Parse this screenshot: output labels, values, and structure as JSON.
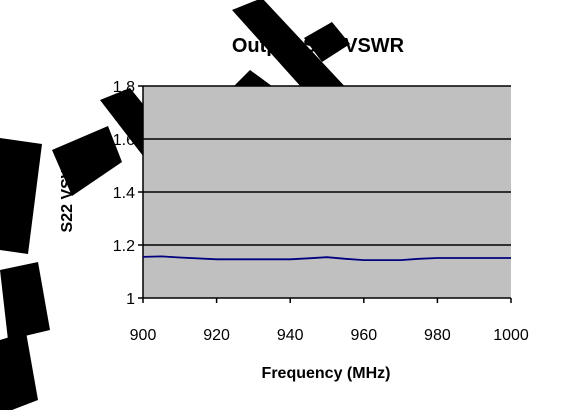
{
  "chart_data": {
    "type": "line",
    "title": "Output S22 VSWR",
    "xlabel": "Frequency (MHz)",
    "ylabel": "S22 VSWR",
    "xlim": [
      900,
      1000
    ],
    "ylim": [
      1,
      1.8
    ],
    "x_ticks": [
      900,
      920,
      940,
      960,
      980,
      1000
    ],
    "y_ticks": [
      1,
      1.2,
      1.4,
      1.6,
      1.8
    ],
    "x_tick_labels": [
      "900",
      "920",
      "940",
      "960",
      "980",
      "1000"
    ],
    "y_tick_labels": [
      "1",
      "1.2",
      "1.4",
      "1.6",
      "1.8"
    ],
    "grid": true,
    "legend": "none",
    "series": [
      {
        "x": [
          900,
          905,
          910,
          920,
          930,
          940,
          945,
          950,
          955,
          960,
          970,
          975,
          980,
          990,
          1000
        ],
        "y": [
          1.155,
          1.157,
          1.153,
          1.146,
          1.146,
          1.146,
          1.15,
          1.154,
          1.148,
          1.143,
          1.143,
          1.148,
          1.151,
          1.151,
          1.151
        ]
      }
    ]
  },
  "colors": {
    "plot_area": "#c0c0c0",
    "gridline": "#000000",
    "series_line": "#000080",
    "watermark": "#000000"
  }
}
